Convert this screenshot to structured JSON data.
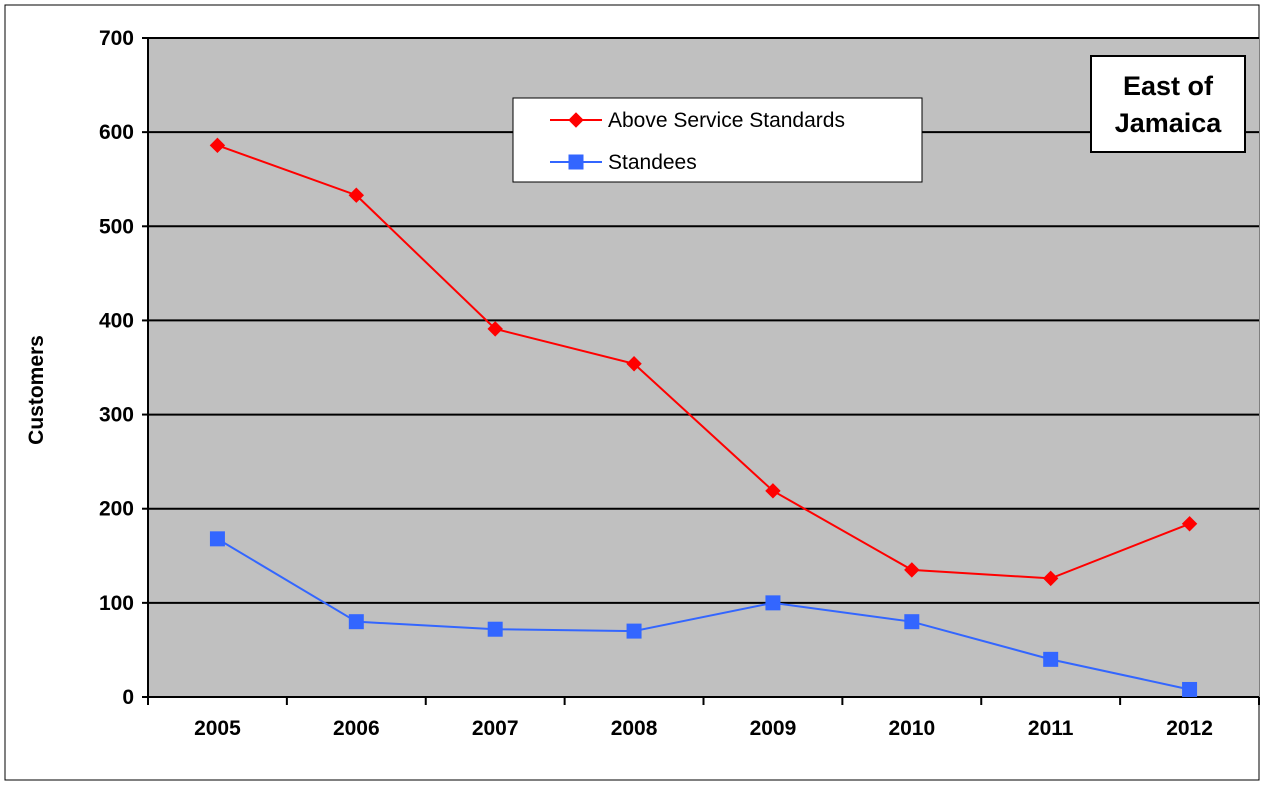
{
  "chart_data": {
    "type": "line",
    "title": "",
    "xlabel": "",
    "ylabel": "Customers",
    "annotation": "East of\nJamaica",
    "categories": [
      "2005",
      "2006",
      "2007",
      "2008",
      "2009",
      "2010",
      "2011",
      "2012"
    ],
    "ylim": [
      0,
      700
    ],
    "yticks": [
      "0",
      "100",
      "200",
      "300",
      "400",
      "500",
      "600",
      "700"
    ],
    "grid": true,
    "legend_position": "top-center",
    "series": [
      {
        "name": "Above Service Standards",
        "values": [
          586,
          533,
          391,
          354,
          219,
          135,
          126,
          184
        ],
        "color": "#ff0000",
        "marker": "diamond"
      },
      {
        "name": "Standees",
        "values": [
          168,
          80,
          72,
          70,
          100,
          80,
          40,
          8
        ],
        "color": "#3366ff",
        "marker": "square"
      }
    ],
    "plot_background": "#c0c0c0"
  }
}
